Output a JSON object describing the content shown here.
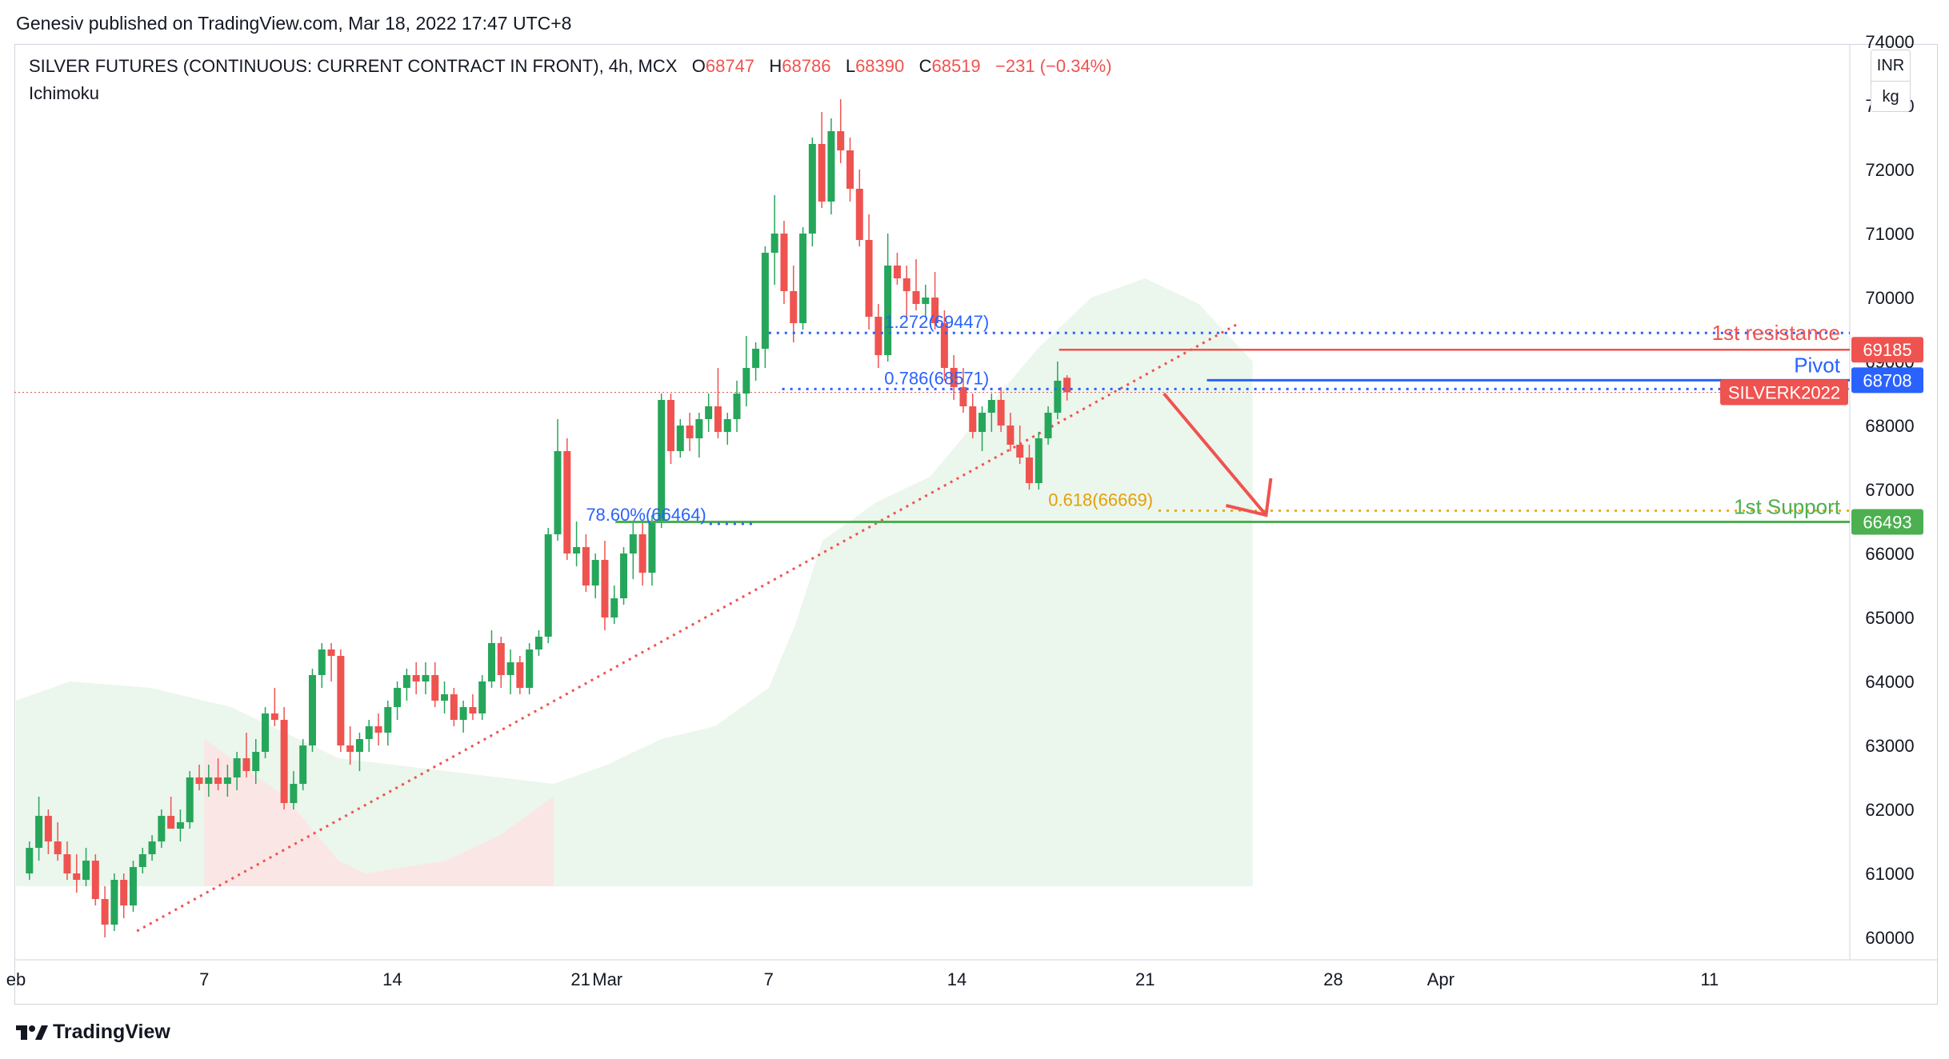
{
  "header": {
    "published_by": "Genesiv published on TradingView.com, Mar 18, 2022 17:47 UTC+8"
  },
  "legend": {
    "symbol": "SILVER FUTURES (CONTINUOUS: CURRENT CONTRACT IN FRONT), 4h, MCX",
    "open_label": "O",
    "open": "68747",
    "high_label": "H",
    "high": "68786",
    "low_label": "L",
    "low": "68390",
    "close_label": "C",
    "close": "68519",
    "change": "−231 (−0.34%)",
    "indicator": "Ichimoku"
  },
  "units": {
    "currency": "INR",
    "unit": "kg"
  },
  "footer": {
    "brand": "TradingView"
  },
  "colors": {
    "up": "#26a65b",
    "down": "#ef5350",
    "resistance": "#ef5350",
    "pivot": "#2962ff",
    "support": "#4caf50",
    "fib": "#2962ff",
    "fib618": "#e3a008",
    "cloud_bull": "#e8f5e9",
    "cloud_bear": "#fde4e4"
  },
  "chart_data": {
    "type": "candlestick",
    "title": "SILVER FUTURES (CONTINUOUS: CURRENT CONTRACT IN FRONT), 4h, MCX",
    "ylim": [
      59700,
      74100
    ],
    "y_ticks": [
      "60000",
      "61000",
      "62000",
      "63000",
      "64000",
      "65000",
      "66000",
      "67000",
      "68000",
      "69000",
      "70000",
      "71000",
      "72000",
      "73000",
      "74000"
    ],
    "x_ticks": [
      {
        "label": "eb",
        "day": 0
      },
      {
        "label": "7",
        "day": 7
      },
      {
        "label": "14",
        "day": 14
      },
      {
        "label": "21",
        "day": 21
      },
      {
        "label": "Mar",
        "day": 22
      },
      {
        "label": "7",
        "day": 28
      },
      {
        "label": "14",
        "day": 35
      },
      {
        "label": "21",
        "day": 42
      },
      {
        "label": "28",
        "day": 49
      },
      {
        "label": "Apr",
        "day": 53
      },
      {
        "label": "11",
        "day": 63
      }
    ],
    "candles_ohlc": [
      [
        61000,
        61500,
        60900,
        61400
      ],
      [
        61400,
        62200,
        61200,
        61900
      ],
      [
        61900,
        62000,
        61300,
        61500
      ],
      [
        61500,
        61800,
        61200,
        61300
      ],
      [
        61300,
        61500,
        60900,
        61000
      ],
      [
        61000,
        61300,
        60700,
        60900
      ],
      [
        60900,
        61400,
        60800,
        61200
      ],
      [
        61200,
        61300,
        60500,
        60600
      ],
      [
        60600,
        60800,
        60000,
        60200
      ],
      [
        60200,
        61000,
        60100,
        60900
      ],
      [
        60900,
        61000,
        60300,
        60500
      ],
      [
        60500,
        61200,
        60400,
        61100
      ],
      [
        61100,
        61400,
        61000,
        61300
      ],
      [
        61300,
        61600,
        61200,
        61500
      ],
      [
        61500,
        62000,
        61400,
        61900
      ],
      [
        61900,
        62200,
        61700,
        61700
      ],
      [
        61700,
        62000,
        61500,
        61800
      ],
      [
        61800,
        62600,
        61700,
        62500
      ],
      [
        62500,
        62700,
        62300,
        62400
      ],
      [
        62400,
        62700,
        62200,
        62500
      ],
      [
        62500,
        62800,
        62300,
        62400
      ],
      [
        62400,
        62700,
        62200,
        62500
      ],
      [
        62500,
        62900,
        62300,
        62800
      ],
      [
        62800,
        63200,
        62500,
        62600
      ],
      [
        62600,
        63100,
        62400,
        62900
      ],
      [
        62900,
        63600,
        62800,
        63500
      ],
      [
        63500,
        63900,
        63300,
        63400
      ],
      [
        63400,
        63600,
        62000,
        62100
      ],
      [
        62100,
        62600,
        62000,
        62400
      ],
      [
        62400,
        63100,
        62300,
        63000
      ],
      [
        63000,
        64200,
        62900,
        64100
      ],
      [
        64100,
        64600,
        63900,
        64500
      ],
      [
        64500,
        64600,
        64000,
        64400
      ],
      [
        64400,
        64500,
        62900,
        63000
      ],
      [
        63000,
        63300,
        62700,
        62900
      ],
      [
        62900,
        63200,
        62600,
        63100
      ],
      [
        63100,
        63400,
        62900,
        63300
      ],
      [
        63300,
        63500,
        63000,
        63200
      ],
      [
        63200,
        63700,
        63000,
        63600
      ],
      [
        63600,
        64000,
        63400,
        63900
      ],
      [
        63900,
        64200,
        63700,
        64100
      ],
      [
        64100,
        64300,
        63800,
        64000
      ],
      [
        64000,
        64300,
        63800,
        64100
      ],
      [
        64100,
        64300,
        63600,
        63700
      ],
      [
        63700,
        64000,
        63500,
        63800
      ],
      [
        63800,
        63900,
        63300,
        63400
      ],
      [
        63400,
        63700,
        63200,
        63600
      ],
      [
        63600,
        63800,
        63400,
        63500
      ],
      [
        63500,
        64100,
        63400,
        64000
      ],
      [
        64000,
        64800,
        63900,
        64600
      ],
      [
        64600,
        64700,
        63900,
        64100
      ],
      [
        64100,
        64500,
        63800,
        64300
      ],
      [
        64300,
        64400,
        63800,
        63900
      ],
      [
        63900,
        64600,
        63800,
        64500
      ],
      [
        64500,
        64800,
        64400,
        64700
      ],
      [
        64700,
        66400,
        64600,
        66300
      ],
      [
        66300,
        68100,
        66200,
        67600
      ],
      [
        67600,
        67800,
        65900,
        66000
      ],
      [
        66000,
        66500,
        65800,
        66100
      ],
      [
        66100,
        66300,
        65400,
        65500
      ],
      [
        65500,
        66000,
        65300,
        65900
      ],
      [
        65900,
        66200,
        64800,
        65000
      ],
      [
        65000,
        65500,
        64900,
        65300
      ],
      [
        65300,
        66100,
        65200,
        66000
      ],
      [
        66000,
        66500,
        65600,
        66300
      ],
      [
        66300,
        66500,
        65500,
        65700
      ],
      [
        65700,
        66600,
        65500,
        66500
      ],
      [
        66500,
        68500,
        66400,
        68400
      ],
      [
        68400,
        68500,
        67400,
        67600
      ],
      [
        67600,
        68100,
        67500,
        68000
      ],
      [
        68000,
        68200,
        67600,
        67800
      ],
      [
        67800,
        68200,
        67500,
        68100
      ],
      [
        68100,
        68500,
        67900,
        68300
      ],
      [
        68300,
        68900,
        67800,
        67900
      ],
      [
        67900,
        68200,
        67700,
        68100
      ],
      [
        68100,
        68700,
        67900,
        68500
      ],
      [
        68500,
        69400,
        68300,
        68900
      ],
      [
        68900,
        69300,
        68700,
        69200
      ],
      [
        69200,
        70800,
        68900,
        70700
      ],
      [
        70700,
        71600,
        70200,
        71000
      ],
      [
        71000,
        71200,
        69900,
        70100
      ],
      [
        70100,
        70500,
        69300,
        69600
      ],
      [
        69600,
        71100,
        69500,
        71000
      ],
      [
        71000,
        72500,
        70800,
        72400
      ],
      [
        72400,
        72900,
        71400,
        71500
      ],
      [
        71500,
        72800,
        71300,
        72600
      ],
      [
        72600,
        73100,
        72100,
        72300
      ],
      [
        72300,
        72500,
        71500,
        71700
      ],
      [
        71700,
        72000,
        70800,
        70900
      ],
      [
        70900,
        71300,
        69500,
        69700
      ],
      [
        69700,
        69900,
        68900,
        69100
      ],
      [
        69100,
        71000,
        69000,
        70500
      ],
      [
        70500,
        70700,
        70200,
        70300
      ],
      [
        70300,
        70500,
        69700,
        70100
      ],
      [
        70100,
        70600,
        69800,
        69900
      ],
      [
        69900,
        70200,
        69700,
        70000
      ],
      [
        70000,
        70400,
        69500,
        69600
      ],
      [
        69600,
        69800,
        68700,
        68900
      ],
      [
        68900,
        69100,
        68400,
        68600
      ],
      [
        68600,
        68900,
        68200,
        68300
      ],
      [
        68300,
        68500,
        67800,
        67900
      ],
      [
        67900,
        68300,
        67600,
        68200
      ],
      [
        68200,
        68500,
        67900,
        68400
      ],
      [
        68400,
        68600,
        67900,
        68000
      ],
      [
        68000,
        68200,
        67600,
        67700
      ],
      [
        67700,
        68000,
        67400,
        67500
      ],
      [
        67500,
        67700,
        67000,
        67100
      ],
      [
        67100,
        67900,
        67000,
        67800
      ],
      [
        67800,
        68300,
        67700,
        68200
      ],
      [
        68200,
        69000,
        68100,
        68700
      ],
      [
        68747,
        68786,
        68390,
        68519
      ]
    ],
    "candles_day_start": 0.5,
    "candles_per_day": 2.85,
    "ichimoku_cloud": {
      "bullish": [
        [
          0,
          63700
        ],
        [
          2,
          64000
        ],
        [
          5,
          63900
        ],
        [
          8,
          63600
        ],
        [
          10,
          63200
        ],
        [
          12,
          62800
        ],
        [
          20,
          62400
        ],
        [
          22,
          62700
        ],
        [
          24,
          63100
        ],
        [
          26,
          63300
        ],
        [
          28,
          63900
        ],
        [
          29,
          64900
        ],
        [
          30,
          66200
        ],
        [
          32,
          66800
        ],
        [
          34,
          67200
        ],
        [
          36,
          68200
        ],
        [
          38,
          69200
        ],
        [
          40,
          70000
        ],
        [
          42,
          70300
        ],
        [
          44,
          69900
        ],
        [
          46,
          69000
        ]
      ],
      "bearish": [
        [
          7,
          63100
        ],
        [
          10,
          62200
        ],
        [
          12,
          61200
        ],
        [
          13,
          61000
        ],
        [
          16,
          61200
        ],
        [
          18,
          61600
        ],
        [
          20,
          62200
        ]
      ]
    },
    "levels": [
      {
        "name": "1st resistance",
        "value": 69185,
        "label": "69185",
        "text": "1st resistance"
      },
      {
        "name": "Pivot",
        "value": 68708,
        "label": "68708",
        "text": "Pivot"
      },
      {
        "name": "1st Support",
        "value": 66493,
        "label": "66493",
        "text": "1st Support"
      }
    ],
    "current_price_tag": {
      "value": 68519,
      "label": "SILVERK2022"
    },
    "fib_labels": [
      {
        "text": "1.272(69447)",
        "value": 69447
      },
      {
        "text": "0.786(68571)",
        "value": 68571
      },
      {
        "text": "78.60%(66464)",
        "value": 66464
      },
      {
        "text": "0.618(66669)",
        "value": 66669
      }
    ],
    "trendline": {
      "from": [
        4.5,
        60100
      ],
      "to": [
        45.5,
        69600
      ]
    },
    "arrow": {
      "from": [
        42.7,
        68500
      ],
      "to": [
        46.5,
        66600
      ]
    }
  }
}
